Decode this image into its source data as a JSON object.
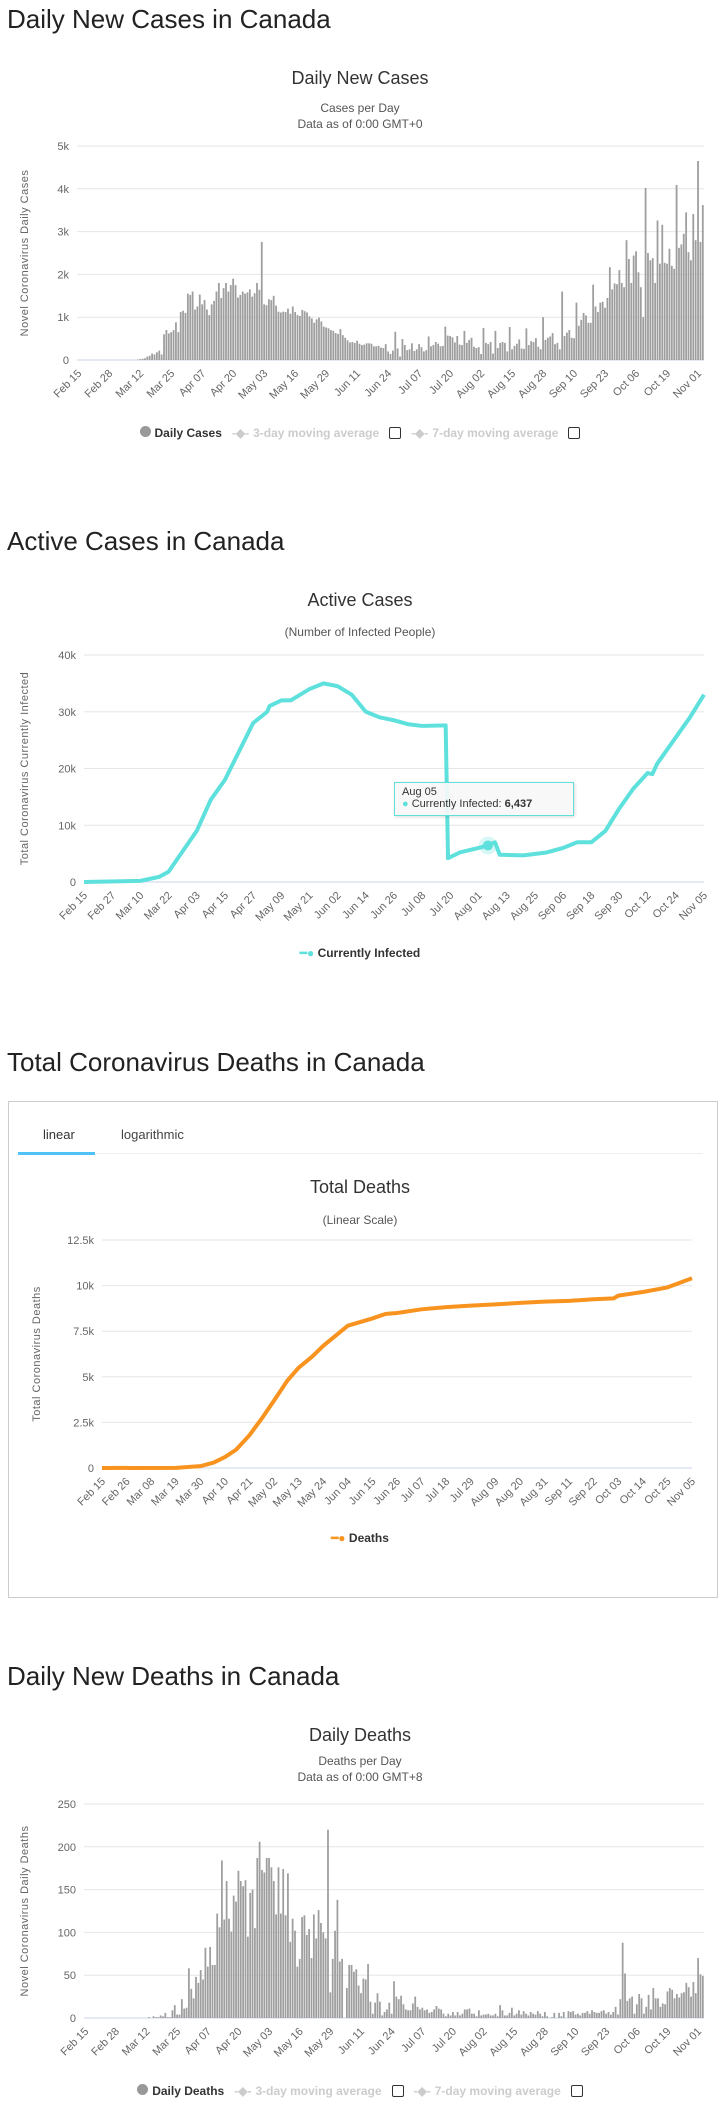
{
  "sections": {
    "daily_cases_heading": "Daily New Cases in Canada",
    "active_heading": "Active Cases in Canada",
    "total_deaths_heading": "Total Coronavirus Deaths in Canada",
    "daily_deaths_heading": "Daily New Deaths in Canada"
  },
  "tabs": {
    "linear": "linear",
    "logarithmic": "logarithmic",
    "active": "linear"
  },
  "legend": {
    "daily_cases": "Daily Cases",
    "ma3": "3-day moving average",
    "ma7": "7-day moving average",
    "currently_infected": "Currently Infected",
    "deaths": "Deaths",
    "daily_deaths": "Daily Deaths"
  },
  "tooltip": {
    "date": "Aug 05",
    "label": "Currently Infected:",
    "value": "6,437"
  },
  "colors": {
    "bars": "#9e9e9e",
    "active": "#5ee0dc",
    "deaths": "#f7931e",
    "tab_accent": "#4fc3f7",
    "grid": "#e6e6e6"
  },
  "chart_data": [
    {
      "type": "bar",
      "title": "Daily New Cases",
      "subtitle": [
        "Cases per Day",
        "Data as of 0:00 GMT+0"
      ],
      "ylabel": "Novel Coronavirus Daily Cases",
      "ylim": [
        0,
        5000
      ],
      "yticks": [
        0,
        1000,
        2000,
        3000,
        4000,
        5000
      ],
      "ytick_labels": [
        "0",
        "1k",
        "2k",
        "3k",
        "4k",
        "5k"
      ],
      "xtick_labels": [
        "Feb 15",
        "Feb 28",
        "Mar 12",
        "Mar 25",
        "Apr 07",
        "Apr 20",
        "May 03",
        "May 16",
        "May 29",
        "Jun 11",
        "Jun 24",
        "Jul 07",
        "Jul 20",
        "Aug 02",
        "Aug 15",
        "Aug 28",
        "Sep 10",
        "Sep 23",
        "Oct 06",
        "Oct 19",
        "Nov 01"
      ],
      "grid": true,
      "series": [
        {
          "name": "Daily Cases",
          "values": [
            0,
            0,
            0,
            0,
            0,
            0,
            0,
            0,
            0,
            0,
            0,
            0,
            0,
            0,
            0,
            0,
            0,
            0,
            0,
            0,
            0,
            0,
            0,
            0,
            0,
            10,
            20,
            30,
            40,
            80,
            100,
            150,
            130,
            180,
            220,
            130,
            600,
            700,
            620,
            650,
            700,
            880,
            650,
            1120,
            1150,
            1100,
            1550,
            1520,
            1600,
            1180,
            1250,
            1530,
            1300,
            1400,
            1180,
            1050,
            1300,
            1380,
            1600,
            1800,
            1450,
            1680,
            1800,
            1600,
            1750,
            1900,
            1750,
            1460,
            1520,
            1600,
            1550,
            1580,
            1650,
            1480,
            1560,
            1800,
            1640,
            2760,
            1300,
            1280,
            1420,
            1400,
            1500,
            1270,
            1130,
            1110,
            1130,
            1120,
            1200,
            1080,
            1250,
            1120,
            1050,
            1030,
            1170,
            1140,
            1110,
            1020,
            970,
            870,
            950,
            990,
            900,
            780,
            760,
            740,
            700,
            680,
            630,
            610,
            720,
            580,
            520,
            460,
            410,
            420,
            400,
            450,
            380,
            350,
            360,
            390,
            390,
            380,
            320,
            320,
            330,
            290,
            280,
            370,
            200,
            140,
            220,
            660,
            270,
            80,
            490,
            350,
            230,
            250,
            390,
            210,
            250,
            370,
            300,
            200,
            230,
            550,
            320,
            350,
            420,
            380,
            320,
            330,
            780,
            570,
            560,
            530,
            410,
            560,
            360,
            350,
            680,
            400,
            470,
            520,
            310,
            280,
            300,
            140,
            750,
            400,
            370,
            420,
            150,
            680,
            280,
            400,
            420,
            400,
            200,
            770,
            250,
            330,
            380,
            480,
            270,
            260,
            740,
            350,
            440,
            420,
            510,
            310,
            250,
            1000,
            470,
            520,
            550,
            630,
            370,
            400,
            250,
            1600,
            560,
            640,
            700,
            520,
            510,
            1340,
            800,
            940,
            1100,
            1040,
            870,
            870,
            1760,
            1250,
            1120,
            1340,
            1360,
            1220,
            1450,
            2170,
            1650,
            1790,
            1770,
            2100,
            1800,
            1700,
            2800,
            2360,
            1800,
            2440,
            2540,
            2050,
            1700,
            1000,
            4020,
            2500,
            2330,
            2380,
            1800,
            3260,
            2250,
            3160,
            2270,
            2250,
            2600,
            2200,
            2130,
            4090,
            2620,
            2700,
            2950,
            3450,
            2520,
            2330,
            3410,
            2800,
            4650,
            2760,
            3620
          ]
        }
      ]
    },
    {
      "type": "line",
      "title": "Active Cases",
      "subtitle": [
        "(Number of Infected People)"
      ],
      "ylabel": "Total Coronavirus Currently Infected",
      "ylim": [
        0,
        40000
      ],
      "yticks": [
        0,
        10000,
        20000,
        30000,
        40000
      ],
      "ytick_labels": [
        "0",
        "10k",
        "20k",
        "30k",
        "40k"
      ],
      "xtick_labels": [
        "Feb 15",
        "Feb 27",
        "Mar 10",
        "Mar 22",
        "Apr 03",
        "Apr 15",
        "Apr 27",
        "May 09",
        "May 21",
        "Jun 02",
        "Jun 14",
        "Jun 26",
        "Jul 08",
        "Jul 20",
        "Aug 01",
        "Aug 13",
        "Aug 25",
        "Sep 06",
        "Sep 18",
        "Sep 30",
        "Oct 12",
        "Oct 24",
        "Nov 05"
      ],
      "grid": true,
      "legend": "bottom",
      "series": [
        {
          "name": "Currently Infected",
          "x": [
            "Feb 15",
            "Mar 10",
            "Mar 18",
            "Mar 22",
            "Apr 03",
            "Apr 09",
            "Apr 15",
            "Apr 21",
            "Apr 27",
            "May 03",
            "May 04",
            "May 09",
            "May 13",
            "May 21",
            "May 27",
            "Jun 02",
            "Jun 08",
            "Jun 14",
            "Jun 20",
            "Jun 26",
            "Jul 02",
            "Jul 08",
            "Jul 18",
            "Jul 19",
            "Jul 24",
            "Aug 01",
            "Aug 05",
            "Aug 08",
            "Aug 10",
            "Aug 20",
            "Aug 30",
            "Sep 06",
            "Sep 12",
            "Sep 18",
            "Sep 24",
            "Sep 30",
            "Oct 06",
            "Oct 12",
            "Oct 14",
            "Oct 16",
            "Oct 24",
            "Oct 30",
            "Nov 05"
          ],
          "y": [
            0,
            200,
            900,
            1800,
            9000,
            14500,
            18000,
            23000,
            28000,
            30000,
            31000,
            32000,
            32000,
            34000,
            35000,
            34500,
            33000,
            30000,
            29000,
            28500,
            27800,
            27500,
            27600,
            4200,
            5200,
            6000,
            6437,
            7000,
            4800,
            4700,
            5200,
            6000,
            7000,
            7000,
            9000,
            13000,
            16500,
            19200,
            19000,
            20800,
            25500,
            29000,
            33000
          ]
        }
      ],
      "highlighted_point": {
        "x": "Aug 05",
        "y": 6437
      }
    },
    {
      "type": "line",
      "title": "Total Deaths",
      "subtitle": [
        "(Linear Scale)"
      ],
      "ylabel": "Total Coronavirus Deaths",
      "ylim": [
        0,
        12500
      ],
      "yticks": [
        0,
        2500,
        5000,
        7500,
        10000,
        12500
      ],
      "ytick_labels": [
        "0",
        "2.5k",
        "5k",
        "7.5k",
        "10k",
        "12.5k"
      ],
      "xtick_labels": [
        "Feb 15",
        "Feb 26",
        "Mar 08",
        "Mar 19",
        "Mar 30",
        "Apr 10",
        "Apr 21",
        "May 02",
        "May 13",
        "May 24",
        "Jun 04",
        "Jun 15",
        "Jun 26",
        "Jul 07",
        "Jul 18",
        "Jul 29",
        "Aug 09",
        "Aug 20",
        "Aug 31",
        "Sep 11",
        "Sep 22",
        "Oct 03",
        "Oct 14",
        "Oct 25",
        "Nov 05"
      ],
      "grid": true,
      "legend": "bottom",
      "series": [
        {
          "name": "Deaths",
          "x": [
            "Feb 15",
            "Mar 19",
            "Mar 30",
            "Apr 05",
            "Apr 10",
            "Apr 15",
            "Apr 21",
            "Apr 27",
            "May 02",
            "May 08",
            "May 13",
            "May 19",
            "May 24",
            "Jun 01",
            "Jun 04",
            "Jun 15",
            "Jun 21",
            "Jun 26",
            "Jul 07",
            "Jul 18",
            "Jul 29",
            "Aug 09",
            "Aug 20",
            "Aug 31",
            "Sep 11",
            "Sep 22",
            "Oct 01",
            "Oct 03",
            "Oct 14",
            "Oct 25",
            "Nov 05"
          ],
          "y": [
            0,
            10,
            100,
            300,
            600,
            1000,
            1800,
            2800,
            3700,
            4800,
            5500,
            6100,
            6700,
            7500,
            7800,
            8200,
            8450,
            8500,
            8700,
            8820,
            8900,
            8970,
            9050,
            9120,
            9160,
            9250,
            9300,
            9450,
            9650,
            9900,
            10400
          ]
        }
      ]
    },
    {
      "type": "bar",
      "title": "Daily Deaths",
      "subtitle": [
        "Deaths per Day",
        "Data as of 0:00 GMT+8"
      ],
      "ylabel": "Novel Coronavirus Daily Deaths",
      "ylim": [
        0,
        250
      ],
      "yticks": [
        0,
        50,
        100,
        150,
        200,
        250
      ],
      "ytick_labels": [
        "0",
        "50",
        "100",
        "150",
        "200",
        "250"
      ],
      "xtick_labels": [
        "Feb 15",
        "Feb 28",
        "Mar 12",
        "Mar 25",
        "Apr 07",
        "Apr 20",
        "May 03",
        "May 16",
        "May 29",
        "Jun 11",
        "Jun 24",
        "Jul 07",
        "Jul 20",
        "Aug 02",
        "Aug 15",
        "Aug 28",
        "Sep 10",
        "Sep 23",
        "Oct 06",
        "Oct 19",
        "Nov 01"
      ],
      "grid": true,
      "series": [
        {
          "name": "Daily Deaths",
          "values": [
            0,
            0,
            0,
            0,
            0,
            0,
            0,
            0,
            0,
            0,
            0,
            0,
            0,
            0,
            0,
            0,
            0,
            0,
            0,
            0,
            0,
            0,
            0,
            0,
            0,
            0,
            0,
            1,
            0,
            2,
            1,
            1,
            3,
            2,
            6,
            1,
            1,
            9,
            15,
            4,
            4,
            22,
            11,
            12,
            58,
            34,
            23,
            48,
            41,
            56,
            45,
            82,
            60,
            83,
            62,
            62,
            122,
            106,
            184,
            115,
            160,
            116,
            101,
            143,
            136,
            172,
            160,
            154,
            161,
            95,
            146,
            150,
            105,
            187,
            206,
            173,
            170,
            187,
            187,
            176,
            160,
            121,
            176,
            122,
            174,
            120,
            169,
            89,
            116,
            102,
            60,
            69,
            118,
            120,
            97,
            104,
            70,
            121,
            93,
            126,
            111,
            100,
            93,
            220,
            30,
            69,
            102,
            138,
            66,
            69,
            0,
            35,
            62,
            62,
            54,
            57,
            38,
            29,
            46,
            45,
            63,
            19,
            5,
            18,
            29,
            19,
            3,
            7,
            10,
            18,
            5,
            43,
            25,
            22,
            26,
            16,
            10,
            9,
            9,
            17,
            25,
            13,
            10,
            12,
            9,
            10,
            6,
            7,
            10,
            14,
            11,
            10,
            5,
            2,
            5,
            3,
            7,
            3,
            7,
            3,
            5,
            10,
            10,
            11,
            5,
            5,
            2,
            9,
            3,
            4,
            4,
            5,
            3,
            3,
            5,
            2,
            15,
            9,
            3,
            3,
            6,
            12,
            3,
            5,
            9,
            4,
            8,
            5,
            3,
            7,
            5,
            4,
            8,
            5,
            2,
            7,
            2,
            0,
            1,
            6,
            0,
            6,
            2,
            7,
            0,
            8,
            7,
            8,
            4,
            5,
            3,
            6,
            6,
            8,
            5,
            9,
            7,
            6,
            6,
            8,
            9,
            5,
            7,
            4,
            7,
            13,
            4,
            22,
            88,
            52,
            20,
            23,
            25,
            5,
            16,
            28,
            23,
            5,
            13,
            27,
            10,
            35,
            23,
            23,
            13,
            17,
            16,
            31,
            35,
            33,
            23,
            28,
            24,
            29,
            30,
            41,
            36,
            25,
            42,
            29,
            70,
            51,
            49
          ]
        }
      ]
    }
  ]
}
